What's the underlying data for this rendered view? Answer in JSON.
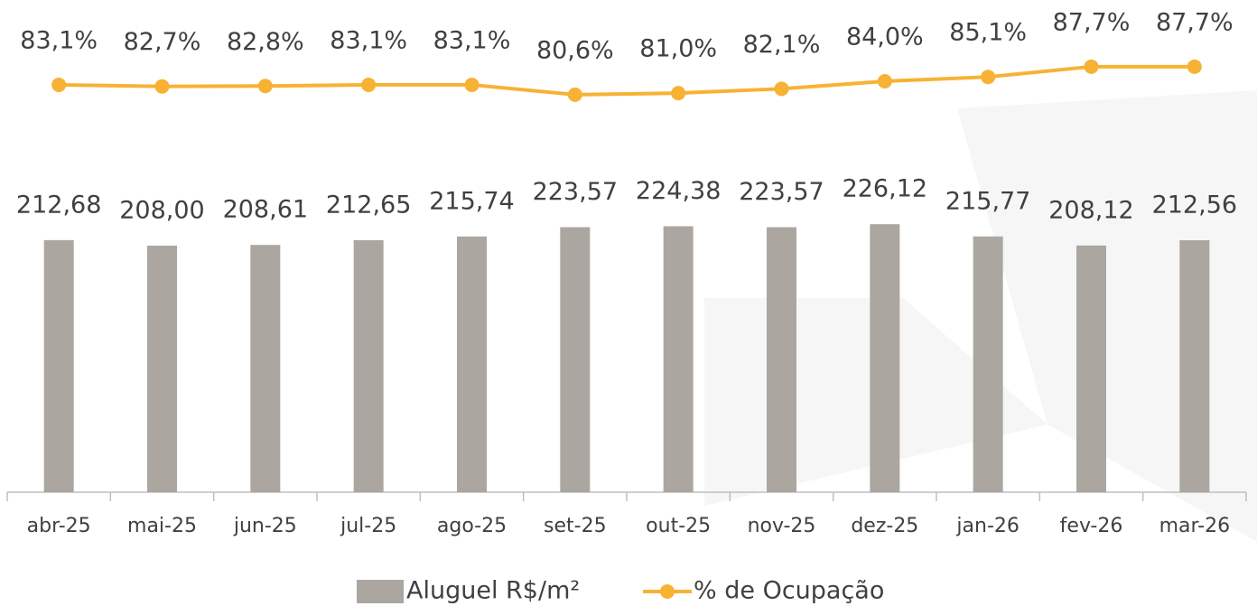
{
  "chart_data": {
    "type": "bar",
    "categories": [
      "abr-25",
      "mai-25",
      "jun-25",
      "jul-25",
      "ago-25",
      "set-25",
      "out-25",
      "nov-25",
      "dez-25",
      "jan-26",
      "fev-26",
      "mar-26"
    ],
    "series": [
      {
        "name": "Aluguel R$/m²",
        "type": "bar",
        "color": "#aba6a0",
        "values": [
          212.68,
          208.0,
          208.61,
          212.65,
          215.74,
          223.57,
          224.38,
          223.57,
          226.12,
          215.77,
          208.12,
          212.56
        ],
        "value_labels": [
          "212,68",
          "208,00",
          "208,61",
          "212,65",
          "215,74",
          "223,57",
          "224,38",
          "223,57",
          "226,12",
          "215,77",
          "208,12",
          "212,56"
        ]
      },
      {
        "name": "% de Ocupação",
        "type": "line",
        "axis": "y2",
        "color": "#f7b233",
        "values": [
          83.1,
          82.7,
          82.8,
          83.1,
          83.1,
          80.6,
          81.0,
          82.1,
          84.0,
          85.1,
          87.7,
          87.7
        ],
        "value_labels": [
          "83,1%",
          "82,7%",
          "82,8%",
          "83,1%",
          "83,1%",
          "80,6%",
          "81,0%",
          "82,1%",
          "84,0%",
          "85,1%",
          "87,7%",
          "87,7%"
        ]
      }
    ],
    "ylim": [
      0,
      400
    ],
    "y2lim": [
      -20,
      100
    ],
    "legend": "bottom"
  }
}
